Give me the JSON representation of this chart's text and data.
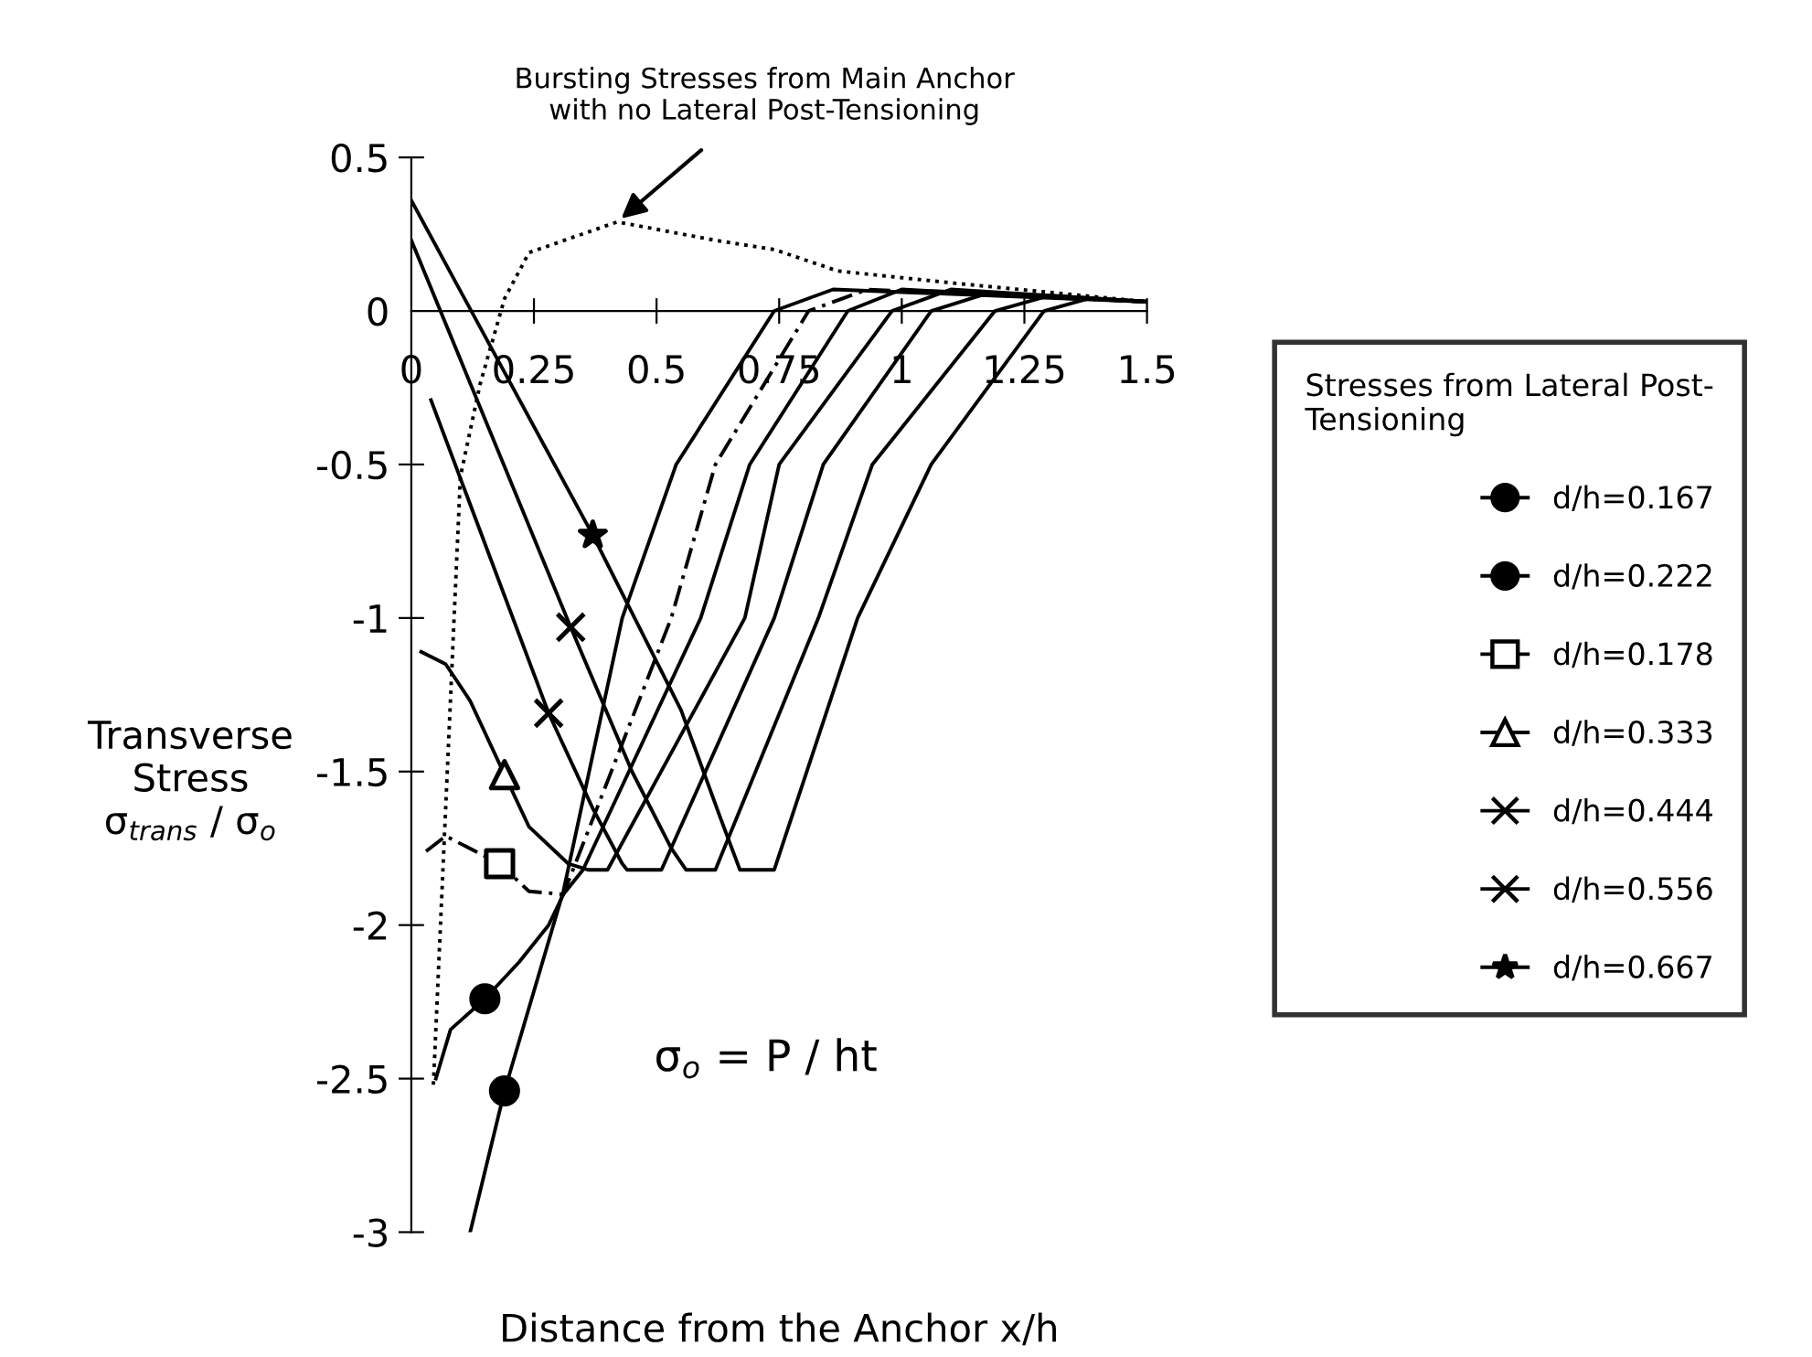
{
  "chart_data": {
    "type": "line",
    "xlabel": "Distance from the Anchor x/h",
    "ylabel": "Transverse\nStress\nσ$_{trans}$ / σ$_{o}$",
    "legend_title": "Stresses from Lateral Post-\nTensioning",
    "legend": "right",
    "xlim": [
      0,
      1.5
    ],
    "ylim": [
      -3,
      0.5
    ],
    "xticks": [
      0,
      0.25,
      0.5,
      0.75,
      1,
      1.25,
      1.5
    ],
    "yticks": [
      0.5,
      0,
      -0.5,
      -1,
      -1.5,
      -2,
      -2.5,
      -3
    ],
    "grid": false,
    "series": [
      {
        "color": "#000000",
        "x": [
          0.12,
          0.19,
          0.31,
          0.43,
          0.54,
          0.74,
          0.86,
          1.5
        ],
        "values": [
          -3.0,
          -2.54,
          -1.89,
          -1,
          -0.5,
          0,
          0.07,
          0.03
        ]
      },
      {
        "color": "#000000",
        "x": [
          0.05,
          0.08,
          0.15,
          0.22,
          0.28,
          0.31,
          0.35,
          0.59,
          0.69,
          0.89,
          1.0,
          1.5
        ],
        "values": [
          -2.5,
          -2.34,
          -2.24,
          -2.12,
          -2.0,
          -1.9,
          -1.82,
          -1,
          -0.5,
          0,
          0.07,
          0.03
        ]
      },
      {
        "color": "#000000",
        "line_style": "dashed",
        "x": [
          0.03,
          0.07,
          0.18,
          0.24,
          0.31,
          0.53,
          0.62,
          0.81,
          0.93,
          1.5
        ],
        "values": [
          -1.76,
          -1.71,
          -1.8,
          -1.89,
          -1.9,
          -1,
          -0.5,
          0,
          0.07,
          0.03
        ]
      },
      {
        "color": "#000000",
        "x": [
          0.02,
          0.07,
          0.12,
          0.19,
          0.24,
          0.32,
          0.36,
          0.4,
          0.68,
          0.75,
          0.98,
          1.1,
          1.5
        ],
        "values": [
          -1.11,
          -1.15,
          -1.27,
          -1.51,
          -1.68,
          -1.8,
          -1.82,
          -1.82,
          -1,
          -0.5,
          0,
          0.07,
          0.03
        ]
      },
      {
        "color": "#000000",
        "x": [
          0.04,
          0.28,
          0.37,
          0.43,
          0.44,
          0.51,
          0.74,
          0.84,
          1.06,
          1.18,
          1.5
        ],
        "values": [
          -0.29,
          -1.31,
          -1.62,
          -1.8,
          -1.82,
          -1.82,
          -1,
          -0.5,
          0,
          0.06,
          0.03
        ]
      },
      {
        "color": "#000000",
        "x": [
          0,
          0.325,
          0.45,
          0.53,
          0.56,
          0.62,
          0.83,
          0.94,
          1.19,
          1.3,
          1.5
        ],
        "values": [
          0.23,
          -1.03,
          -1.5,
          -1.75,
          -1.82,
          -1.82,
          -1,
          -0.5,
          0,
          0.05,
          0.03
        ]
      },
      {
        "color": "#000000",
        "x": [
          0,
          0.37,
          0.55,
          0.63,
          0.67,
          0.74,
          0.91,
          1.06,
          1.29,
          1.38,
          1.5
        ],
        "values": [
          0.36,
          -0.73,
          -1.3,
          -1.65,
          -1.82,
          -1.82,
          -1,
          -0.5,
          0,
          0.04,
          0.03
        ]
      },
      {
        "color": "#000000",
        "line_style": "dotted",
        "x": [
          0.045,
          0.1,
          0.14,
          0.19,
          0.24,
          0.42,
          0.62,
          0.74,
          0.87,
          1.11,
          1.5
        ],
        "values": [
          -2.52,
          -0.54,
          -0.24,
          0.04,
          0.19,
          0.29,
          0.23,
          0.2,
          0.13,
          0.09,
          0.03
        ]
      },
      {
        "type": "scatter",
        "name": "d/h=0.167",
        "color": "#000000",
        "marker": "circle",
        "x": [
          0.19
        ],
        "values": [
          -2.54
        ]
      },
      {
        "type": "scatter",
        "name": "d/h=0.222",
        "color": "#000000",
        "marker": "circle",
        "x": [
          0.15
        ],
        "values": [
          -2.24
        ]
      },
      {
        "type": "scatter",
        "name": "d/h=0.178",
        "color": "#000000",
        "marker": "square",
        "x": [
          0.18
        ],
        "values": [
          -1.8
        ]
      },
      {
        "type": "scatter",
        "name": "d/h=0.333",
        "color": "#000000",
        "marker": "triangle",
        "x": [
          0.19
        ],
        "values": [
          -1.51
        ]
      },
      {
        "type": "scatter",
        "name": "d/h=0.444",
        "color": "#000000",
        "marker": "cross",
        "x": [
          0.28
        ],
        "values": [
          -1.31
        ]
      },
      {
        "type": "scatter",
        "name": "d/h=0.556",
        "color": "#000000",
        "marker": "cross",
        "x": [
          0.325
        ],
        "values": [
          -1.03
        ]
      },
      {
        "type": "scatter",
        "name": "d/h=0.667",
        "color": "#000000",
        "marker": "star",
        "x": [
          0.37
        ],
        "values": [
          -0.73
        ]
      }
    ],
    "annotations": [
      {
        "text": "Bursting Stresses from Main Anchor\nwith no Lateral Post-Tensioning",
        "x": 0.42,
        "y": 0.29
      },
      "σ$_{o}$ = P / ht"
    ]
  }
}
